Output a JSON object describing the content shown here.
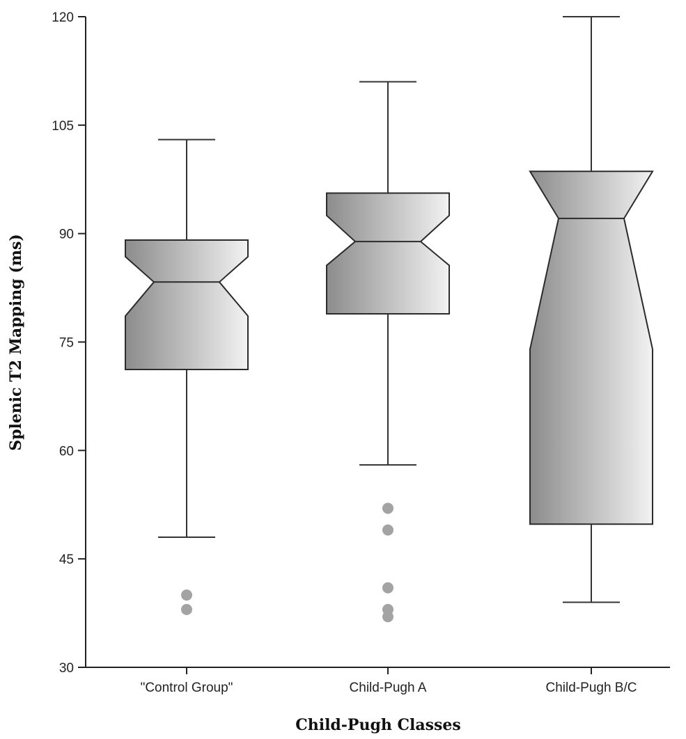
{
  "chart_data": {
    "type": "box",
    "notched": true,
    "xlabel": "Child-Pugh Classes",
    "ylabel": "Splenic T2 Mapping (ms)",
    "ylim": [
      30,
      120
    ],
    "yticks": [
      30,
      45,
      60,
      75,
      90,
      105,
      120
    ],
    "grid": false,
    "categories": [
      "\"Control Group\"",
      "Child-Pugh A",
      "Child-Pugh B/C"
    ],
    "boxes": [
      {
        "category": "\"Control Group\"",
        "whisker_low": 48,
        "q1": 71.2,
        "median": 83.3,
        "q3": 89.1,
        "whisker_high": 103,
        "notch_low": 78.6,
        "notch_high": 86.8,
        "outliers": [
          40,
          38
        ]
      },
      {
        "category": "Child-Pugh A",
        "whisker_low": 58,
        "q1": 78.9,
        "median": 88.9,
        "q3": 95.6,
        "whisker_high": 111,
        "notch_low": 85.6,
        "notch_high": 92.5,
        "outliers": [
          52,
          49,
          41,
          38,
          37
        ]
      },
      {
        "category": "Child-Pugh B/C",
        "whisker_low": 39,
        "q1": 49.8,
        "median": 92.1,
        "q3": 98.6,
        "whisker_high": 120,
        "notch_low": 74,
        "notch_high": 98.6,
        "outliers": []
      }
    ],
    "colors": {
      "box_gradient_dark": "#8c8c8c",
      "box_gradient_light": "#f2f2f2",
      "box_stroke": "#2b2b2b",
      "whisker": "#333333",
      "outlier": "#a3a3a3",
      "axis": "#222222"
    }
  }
}
